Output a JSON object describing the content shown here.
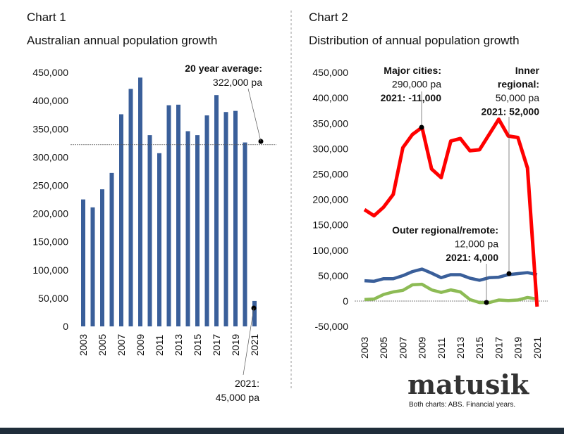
{
  "colors": {
    "bar": "#3a5f9a",
    "major": "#ff0000",
    "inner": "#3a5f9a",
    "outer": "#8dbb55"
  },
  "chart_data": [
    {
      "type": "bar",
      "title": "Chart 1",
      "subtitle": "Australian annual population growth",
      "categories": [
        "2003",
        "2004",
        "2005",
        "2006",
        "2007",
        "2008",
        "2009",
        "2010",
        "2011",
        "2012",
        "2013",
        "2014",
        "2015",
        "2016",
        "2017",
        "2018",
        "2019",
        "2020",
        "2021"
      ],
      "tick_labels_x": [
        "2003",
        "2005",
        "2007",
        "2009",
        "2011",
        "2013",
        "2015",
        "2017",
        "2019",
        "2021"
      ],
      "values": [
        225000,
        211000,
        243000,
        272000,
        376000,
        421000,
        441000,
        339000,
        307000,
        392000,
        393000,
        346000,
        339000,
        374000,
        410000,
        380000,
        382000,
        326000,
        45000
      ],
      "ylim": [
        0,
        450000
      ],
      "yticks": [
        "0",
        "50,000",
        "100,000",
        "150,000",
        "200,000",
        "250,000",
        "300,000",
        "350,000",
        "400,000",
        "450,000"
      ],
      "average": 322000,
      "annotations": {
        "average": [
          "20 year average:",
          "322,000 pa"
        ],
        "last": [
          "2021:",
          "45,000 pa"
        ]
      }
    },
    {
      "type": "line",
      "title": "Chart 2",
      "subtitle": "Distribution of annual population growth",
      "x": [
        "2003",
        "2004",
        "2005",
        "2006",
        "2007",
        "2008",
        "2009",
        "2010",
        "2011",
        "2012",
        "2013",
        "2014",
        "2015",
        "2016",
        "2017",
        "2018",
        "2019",
        "2020",
        "2021"
      ],
      "tick_labels_x": [
        "2003",
        "2005",
        "2007",
        "2009",
        "2011",
        "2013",
        "2015",
        "2017",
        "2019",
        "2021"
      ],
      "ylim": [
        -50000,
        450000
      ],
      "yticks": [
        "-50,000",
        "0",
        "50,000",
        "100,000",
        "150,000",
        "200,000",
        "250,000",
        "300,000",
        "350,000",
        "400,000",
        "450,000"
      ],
      "series": [
        {
          "key": "major",
          "values": [
            180000,
            168000,
            185000,
            210000,
            302000,
            328000,
            342000,
            260000,
            243000,
            315000,
            320000,
            296000,
            298000,
            328000,
            358000,
            325000,
            322000,
            262000,
            -11000
          ]
        },
        {
          "key": "inner",
          "values": [
            40000,
            39000,
            44000,
            44000,
            50000,
            58000,
            63000,
            55000,
            46000,
            52000,
            52000,
            45000,
            41000,
            46000,
            47000,
            52000,
            54000,
            56000,
            52000
          ]
        },
        {
          "key": "outer",
          "values": [
            3000,
            4000,
            13000,
            18000,
            21000,
            32000,
            33000,
            22000,
            17000,
            22000,
            18000,
            3000,
            -3000,
            -3000,
            2000,
            1000,
            2000,
            7000,
            4000
          ]
        }
      ],
      "annotations": {
        "major": [
          "Major cities:",
          "290,000 pa",
          "2021: -11,000"
        ],
        "inner": [
          "Inner",
          "regional:",
          "50,000 pa",
          "2021: 52,000"
        ],
        "outer": [
          "Outer regional/remote:",
          "12,000 pa",
          "2021: 4,000"
        ]
      }
    }
  ],
  "footer": {
    "logo": "matusik",
    "source": "Both charts: ABS.  Financial years."
  }
}
